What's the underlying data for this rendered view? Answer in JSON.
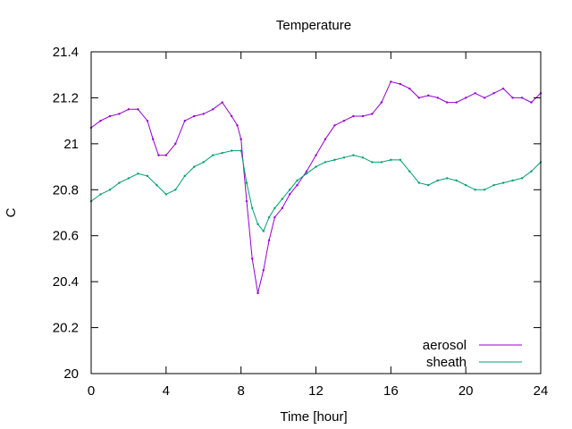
{
  "chart_data": {
    "type": "line",
    "title": "Temperature",
    "xlabel": "Time [hour]",
    "ylabel": "C",
    "xlim": [
      0,
      24
    ],
    "ylim": [
      20,
      21.4
    ],
    "xticks": [
      0,
      4,
      8,
      12,
      16,
      20,
      24
    ],
    "yticks": [
      20,
      20.2,
      20.4,
      20.6,
      20.8,
      21,
      21.2,
      21.4
    ],
    "xtick_labels": [
      "0",
      "4",
      "8",
      "12",
      "16",
      "20",
      "24"
    ],
    "ytick_labels": [
      "20",
      "20.2",
      "20.4",
      "20.6",
      "20.8",
      "21",
      "21.2",
      "21.4"
    ],
    "grid": false,
    "legend_position": "bottom-right",
    "series": [
      {
        "name": "aerosol",
        "color": "#9400d3",
        "x": [
          0,
          0.5,
          1,
          1.5,
          2,
          2.5,
          3,
          3.3,
          3.6,
          4,
          4.5,
          5,
          5.5,
          6,
          6.5,
          7,
          7.5,
          7.8,
          8,
          8.3,
          8.6,
          8.9,
          9.2,
          9.5,
          9.8,
          10.2,
          10.6,
          11,
          11.5,
          12,
          12.5,
          13,
          13.5,
          14,
          14.5,
          15,
          15.5,
          16,
          16.5,
          17,
          17.5,
          18,
          18.5,
          19,
          19.5,
          20,
          20.5,
          21,
          21.5,
          22,
          22.5,
          23,
          23.5,
          24
        ],
        "y": [
          21.07,
          21.1,
          21.12,
          21.13,
          21.15,
          21.15,
          21.1,
          21.02,
          20.95,
          20.95,
          21.0,
          21.1,
          21.12,
          21.13,
          21.15,
          21.18,
          21.12,
          21.08,
          21.02,
          20.75,
          20.5,
          20.35,
          20.45,
          20.58,
          20.68,
          20.72,
          20.78,
          20.82,
          20.88,
          20.95,
          21.02,
          21.08,
          21.1,
          21.12,
          21.12,
          21.13,
          21.18,
          21.27,
          21.26,
          21.24,
          21.2,
          21.21,
          21.2,
          21.18,
          21.18,
          21.2,
          21.22,
          21.2,
          21.22,
          21.24,
          21.2,
          21.2,
          21.18,
          21.22
        ]
      },
      {
        "name": "sheath",
        "color": "#009e73",
        "x": [
          0,
          0.5,
          1,
          1.5,
          2,
          2.5,
          3,
          3.5,
          4,
          4.5,
          5,
          5.5,
          6,
          6.5,
          7,
          7.5,
          8,
          8.3,
          8.6,
          8.9,
          9.2,
          9.5,
          9.8,
          10.2,
          10.6,
          11,
          11.5,
          12,
          12.5,
          13,
          13.5,
          14,
          14.5,
          15,
          15.5,
          16,
          16.5,
          17,
          17.5,
          18,
          18.5,
          19,
          19.5,
          20,
          20.5,
          21,
          21.5,
          22,
          22.5,
          23,
          23.5,
          24
        ],
        "y": [
          20.75,
          20.78,
          20.8,
          20.83,
          20.85,
          20.87,
          20.86,
          20.82,
          20.78,
          20.8,
          20.86,
          20.9,
          20.92,
          20.95,
          20.96,
          20.97,
          20.97,
          20.83,
          20.72,
          20.65,
          20.62,
          20.68,
          20.72,
          20.76,
          20.8,
          20.84,
          20.87,
          20.9,
          20.92,
          20.93,
          20.94,
          20.95,
          20.94,
          20.92,
          20.92,
          20.93,
          20.93,
          20.88,
          20.83,
          20.82,
          20.84,
          20.85,
          20.84,
          20.82,
          20.8,
          20.8,
          20.82,
          20.83,
          20.84,
          20.85,
          20.88,
          20.92
        ]
      }
    ]
  }
}
